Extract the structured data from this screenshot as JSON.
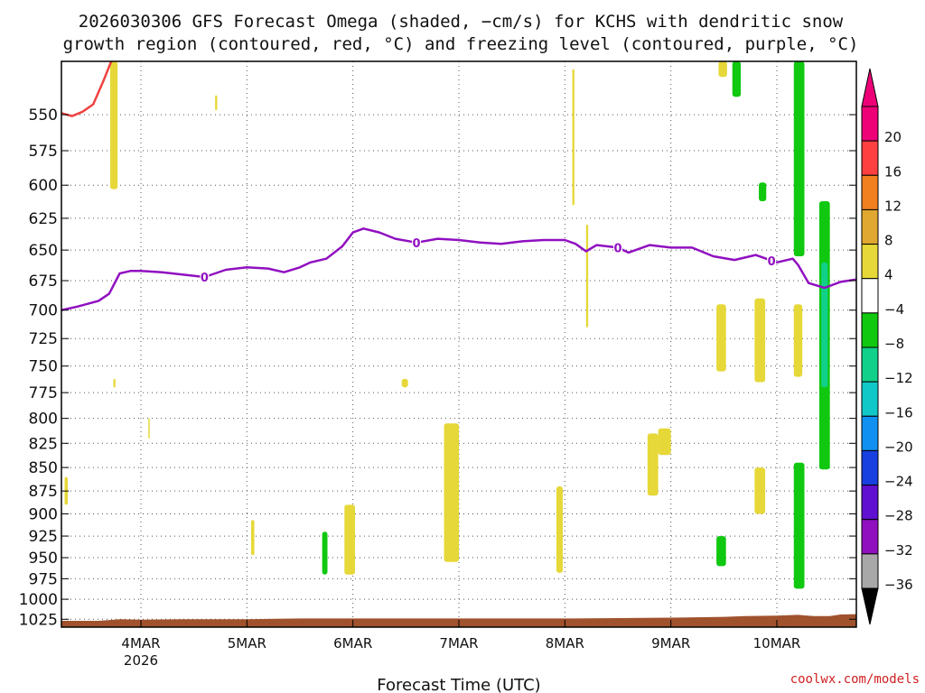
{
  "chart_data": {
    "type": "heatmap",
    "title": "2026030306 GFS Forecast Omega (shaded, −cm/s) for KCHS with dendritic snow",
    "subtitle": "growth region (contoured, red, °C) and freezing level (contoured, purple, °C)",
    "xlabel": "Forecast Time (UTC)",
    "ylabel": "",
    "credit": "coolwx.com/models",
    "y_scale": "log-pressure",
    "ylim": [
      1035,
      515
    ],
    "y_ticks": [
      "550",
      "575",
      "600",
      "625",
      "650",
      "675",
      "700",
      "725",
      "750",
      "775",
      "800",
      "825",
      "850",
      "875",
      "900",
      "925",
      "950",
      "975",
      "1000",
      "1025"
    ],
    "y_tick_values": [
      550,
      575,
      600,
      625,
      650,
      675,
      700,
      725,
      750,
      775,
      800,
      825,
      850,
      875,
      900,
      925,
      950,
      975,
      1000,
      1025
    ],
    "xlim": [
      3.25,
      10.75
    ],
    "x_ticks": [
      {
        "day": 4,
        "label": "4MAR",
        "sublabel": "2026"
      },
      {
        "day": 5,
        "label": "5MAR",
        "sublabel": ""
      },
      {
        "day": 6,
        "label": "6MAR",
        "sublabel": ""
      },
      {
        "day": 7,
        "label": "7MAR",
        "sublabel": ""
      },
      {
        "day": 8,
        "label": "8MAR",
        "sublabel": ""
      },
      {
        "day": 9,
        "label": "9MAR",
        "sublabel": ""
      },
      {
        "day": 10,
        "label": "10MAR",
        "sublabel": ""
      }
    ],
    "grid": true,
    "colorbar": {
      "levels": [
        {
          "label": "20",
          "color": "#ee0077"
        },
        {
          "label": "16",
          "color": "#ff4040"
        },
        {
          "label": "12",
          "color": "#f08020"
        },
        {
          "label": "8",
          "color": "#e0a830"
        },
        {
          "label": "4",
          "color": "#e6d838"
        },
        {
          "label": "−4",
          "color": "#ffffff"
        },
        {
          "label": "−8",
          "color": "#10c810"
        },
        {
          "label": "−12",
          "color": "#10d08a"
        },
        {
          "label": "−16",
          "color": "#10c8c8"
        },
        {
          "label": "−20",
          "color": "#1090f0"
        },
        {
          "label": "−24",
          "color": "#1840e0"
        },
        {
          "label": "−28",
          "color": "#6010d0"
        },
        {
          "label": "−32",
          "color": "#9010c0"
        },
        {
          "label": "−36",
          "color": "#a8a8a8"
        }
      ],
      "bottom_color": "#000000"
    },
    "freezing_level": {
      "color": "#9010c0",
      "label": "0",
      "points": [
        [
          3.25,
          700
        ],
        [
          3.4,
          697
        ],
        [
          3.6,
          692
        ],
        [
          3.7,
          686
        ],
        [
          3.8,
          669
        ],
        [
          3.9,
          667
        ],
        [
          4.0,
          667
        ],
        [
          4.2,
          668
        ],
        [
          4.4,
          670
        ],
        [
          4.6,
          672
        ],
        [
          4.8,
          666
        ],
        [
          5.0,
          664
        ],
        [
          5.2,
          665
        ],
        [
          5.35,
          668
        ],
        [
          5.5,
          664
        ],
        [
          5.6,
          660
        ],
        [
          5.75,
          657
        ],
        [
          5.9,
          647
        ],
        [
          6.0,
          636
        ],
        [
          6.1,
          633
        ],
        [
          6.25,
          636
        ],
        [
          6.4,
          641
        ],
        [
          6.6,
          644
        ],
        [
          6.8,
          641
        ],
        [
          7.0,
          642
        ],
        [
          7.2,
          644
        ],
        [
          7.4,
          645
        ],
        [
          7.6,
          643
        ],
        [
          7.8,
          642
        ],
        [
          8.0,
          642
        ],
        [
          8.1,
          645
        ],
        [
          8.2,
          651
        ],
        [
          8.3,
          646
        ],
        [
          8.4,
          647
        ],
        [
          8.5,
          648
        ],
        [
          8.6,
          652
        ],
        [
          8.8,
          646
        ],
        [
          9.0,
          648
        ],
        [
          9.2,
          648
        ],
        [
          9.4,
          655
        ],
        [
          9.6,
          658
        ],
        [
          9.8,
          654
        ],
        [
          10.0,
          660
        ],
        [
          10.15,
          657
        ],
        [
          10.2,
          662
        ],
        [
          10.3,
          677
        ],
        [
          10.45,
          681
        ],
        [
          10.6,
          676
        ],
        [
          10.75,
          674
        ]
      ]
    },
    "dendritic_region": {
      "color": "#f04040",
      "points": [
        [
          3.25,
          549
        ],
        [
          3.35,
          551
        ],
        [
          3.45,
          548
        ],
        [
          3.55,
          543
        ],
        [
          3.65,
          527
        ],
        [
          3.72,
          515
        ]
      ]
    },
    "omega_cells": [
      {
        "x": [
          3.71,
          3.78
        ],
        "p": [
          515,
          603
        ],
        "value": 5
      },
      {
        "x": [
          4.7,
          4.72
        ],
        "p": [
          537,
          547
        ],
        "value": 5
      },
      {
        "x": [
          8.07,
          8.09
        ],
        "p": [
          520,
          615
        ],
        "value": 5
      },
      {
        "x": [
          8.2,
          8.22
        ],
        "p": [
          630,
          715
        ],
        "value": 5
      },
      {
        "x": [
          9.45,
          9.53
        ],
        "p": [
          515,
          525
        ],
        "value": 5
      },
      {
        "x": [
          9.58,
          9.66
        ],
        "p": [
          515,
          538
        ],
        "value": -6
      },
      {
        "x": [
          9.83,
          9.9
        ],
        "p": [
          598,
          612
        ],
        "value": -6
      },
      {
        "x": [
          10.16,
          10.26
        ],
        "p": [
          515,
          655
        ],
        "value": -6
      },
      {
        "x": [
          10.4,
          10.5
        ],
        "p": [
          612,
          852
        ],
        "value": -6
      },
      {
        "x": [
          10.42,
          10.48
        ],
        "p": [
          660,
          770
        ],
        "value": -10
      },
      {
        "x": [
          9.43,
          9.52
        ],
        "p": [
          695,
          755
        ],
        "value": 5
      },
      {
        "x": [
          9.79,
          9.89
        ],
        "p": [
          690,
          765
        ],
        "value": 5
      },
      {
        "x": [
          10.16,
          10.24
        ],
        "p": [
          695,
          760
        ],
        "value": 5
      },
      {
        "x": [
          8.78,
          8.88
        ],
        "p": [
          815,
          880
        ],
        "value": 5
      },
      {
        "x": [
          8.88,
          9.0
        ],
        "p": [
          810,
          837
        ],
        "value": 5
      },
      {
        "x": [
          9.79,
          9.89
        ],
        "p": [
          850,
          900
        ],
        "value": 5
      },
      {
        "x": [
          10.16,
          10.26
        ],
        "p": [
          845,
          987
        ],
        "value": -6
      },
      {
        "x": [
          9.43,
          9.52
        ],
        "p": [
          925,
          960
        ],
        "value": -6
      },
      {
        "x": [
          6.86,
          7.0
        ],
        "p": [
          805,
          955
        ],
        "value": 5
      },
      {
        "x": [
          7.92,
          7.98
        ],
        "p": [
          870,
          968
        ],
        "value": 5
      },
      {
        "x": [
          5.92,
          6.02
        ],
        "p": [
          890,
          970
        ],
        "value": 5
      },
      {
        "x": [
          5.71,
          5.76
        ],
        "p": [
          920,
          970
        ],
        "value": -6
      },
      {
        "x": [
          5.04,
          5.07
        ],
        "p": [
          907,
          947
        ],
        "value": 5
      },
      {
        "x": [
          6.46,
          6.52
        ],
        "p": [
          762,
          770
        ],
        "value": 5
      },
      {
        "x": [
          3.74,
          3.76
        ],
        "p": [
          762,
          770
        ],
        "value": 5
      },
      {
        "x": [
          3.28,
          3.31
        ],
        "p": [
          860,
          890
        ],
        "value": 5
      },
      {
        "x": [
          4.07,
          4.08
        ],
        "p": [
          800,
          820
        ],
        "value": 5
      }
    ],
    "terrain": {
      "color": "#a0522d",
      "points": [
        [
          3.25,
          1027
        ],
        [
          3.6,
          1027
        ],
        [
          3.8,
          1025
        ],
        [
          4.0,
          1025.5
        ],
        [
          4.4,
          1025
        ],
        [
          5.0,
          1025
        ],
        [
          5.5,
          1024
        ],
        [
          6.0,
          1024
        ],
        [
          7.0,
          1024
        ],
        [
          8.0,
          1024
        ],
        [
          8.5,
          1023.5
        ],
        [
          9.0,
          1023
        ],
        [
          9.5,
          1022
        ],
        [
          9.7,
          1021
        ],
        [
          10.0,
          1020.5
        ],
        [
          10.2,
          1019.5
        ],
        [
          10.35,
          1021
        ],
        [
          10.5,
          1021
        ],
        [
          10.6,
          1019
        ],
        [
          10.75,
          1018.5
        ]
      ]
    }
  }
}
